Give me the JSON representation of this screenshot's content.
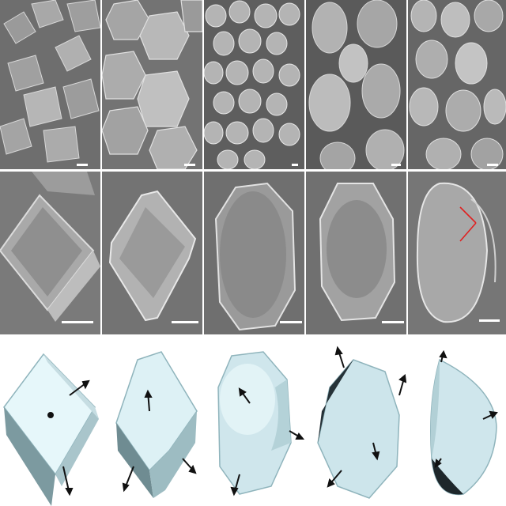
{
  "figure": {
    "background": "#ffffff",
    "sem_tone": "#8e8e8e",
    "render_face_color": "#cfe6ec",
    "rows": [
      {
        "kind": "sem-overview",
        "count": 5
      },
      {
        "kind": "sem-single-crystal",
        "count": 5
      },
      {
        "kind": "3d-crystal-model",
        "count": 5
      }
    ],
    "annotations": {
      "crystal_angle_marker_color": "#e02020"
    }
  }
}
